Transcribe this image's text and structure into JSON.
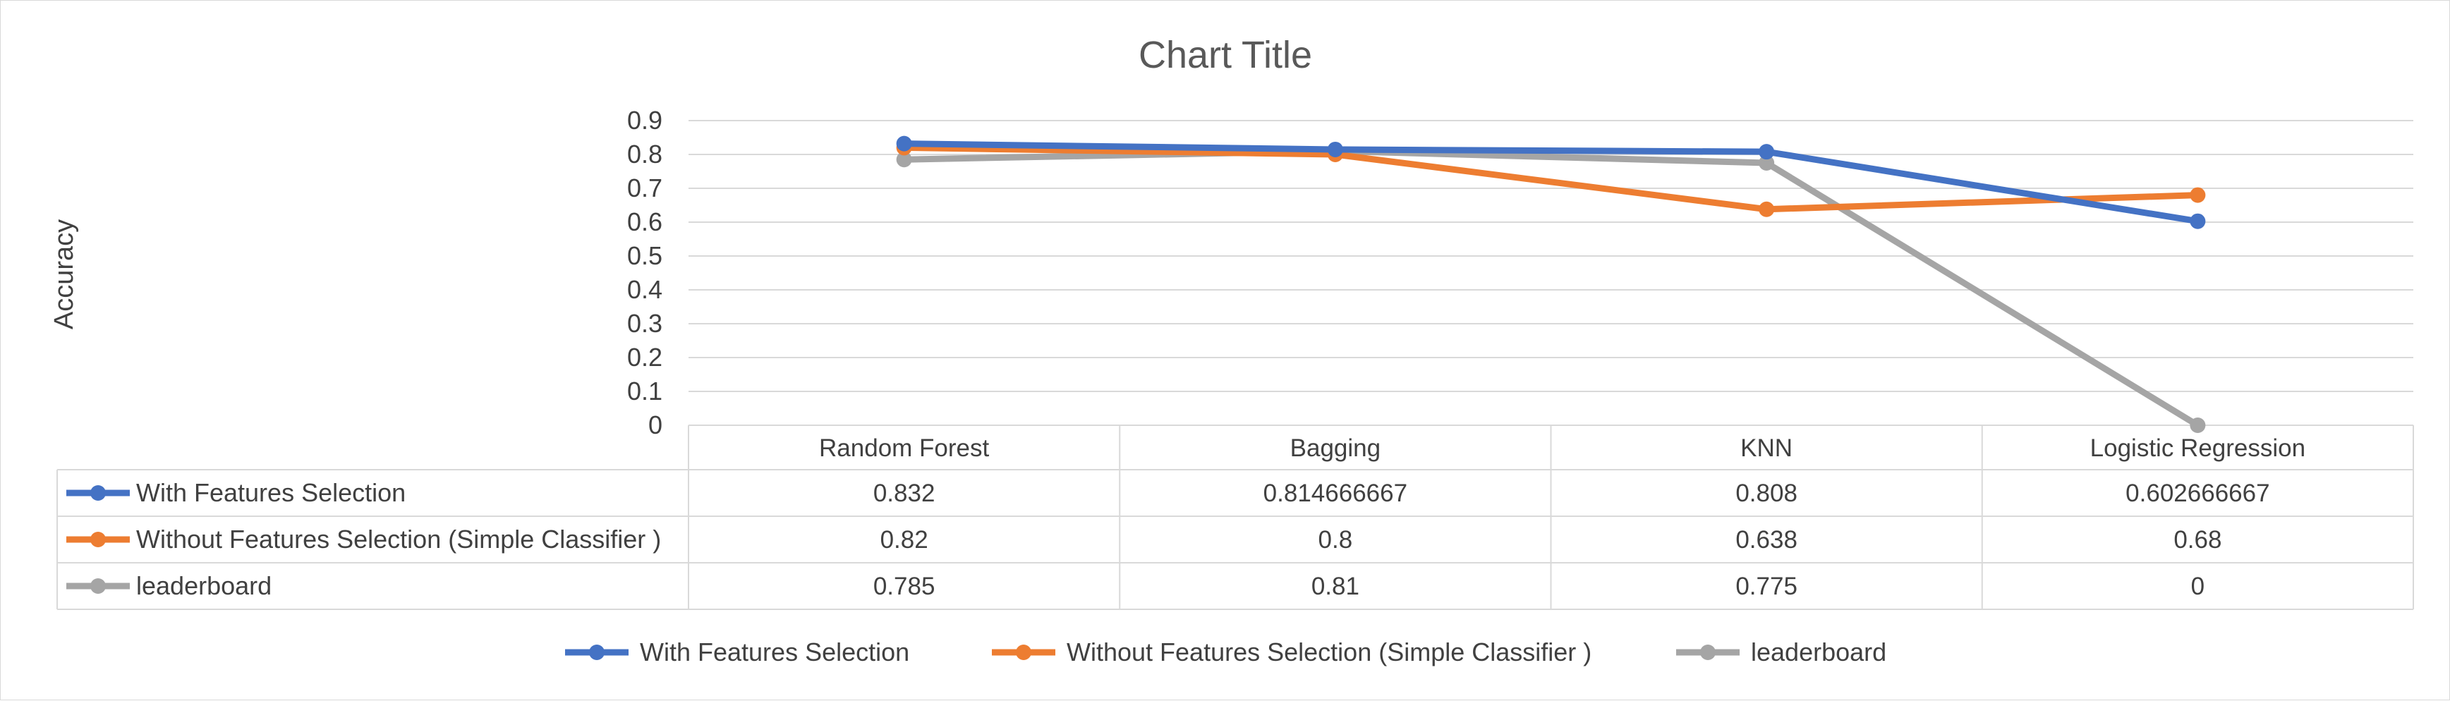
{
  "chart_data": {
    "type": "line",
    "title": "Chart Title",
    "ylabel": "Accuracy",
    "xlabel": "",
    "ylim": [
      0,
      0.9
    ],
    "yticks": [
      "0",
      "0.1",
      "0.2",
      "0.3",
      "0.4",
      "0.5",
      "0.6",
      "0.7",
      "0.8",
      "0.9"
    ],
    "categories": [
      "Random Forest",
      "Bagging",
      "KNN",
      "Logistic Regression"
    ],
    "grid": true,
    "legend": "bottom",
    "data_table": true,
    "series": [
      {
        "name": "With Features Selection",
        "color": "#4472c4",
        "values": [
          0.832,
          0.814666667,
          0.808,
          0.602666667
        ],
        "labels": [
          "0.832",
          "0.814666667",
          "0.808",
          "0.602666667"
        ]
      },
      {
        "name": "Without Features Selection (Simple Classifier )",
        "color": "#ed7d31",
        "values": [
          0.82,
          0.8,
          0.638,
          0.68
        ],
        "labels": [
          "0.82",
          "0.8",
          "0.638",
          "0.68"
        ]
      },
      {
        "name": "leaderboard",
        "color": "#a5a5a5",
        "values": [
          0.785,
          0.81,
          0.775,
          0
        ],
        "labels": [
          "0.785",
          "0.81",
          "0.775",
          "0"
        ]
      }
    ]
  }
}
